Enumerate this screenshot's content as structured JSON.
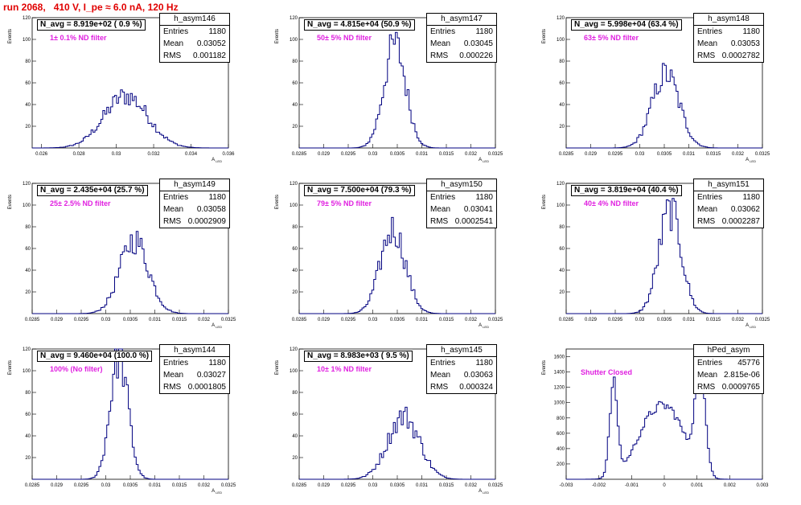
{
  "header": "run 2068,   410 V, I_pe ≈ 6.0 nA, 120 Hz",
  "chart_data": [
    {
      "type": "bar",
      "name": "h_asym146",
      "n_avg": "N_avg = 8.919e+02 ( 0.9 %)",
      "filter": "1± 0.1% ND filter",
      "stats": [
        {
          "label": "Entries",
          "value": "1180"
        },
        {
          "label": "Mean",
          "value": "0.03052"
        },
        {
          "label": "RMS",
          "value": "0.001182"
        }
      ],
      "xlabel": "A_LED",
      "ylabel": "Events",
      "xlim": [
        0.0255,
        0.036
      ],
      "ylim": [
        0,
        120
      ],
      "xticks": [
        "0.026",
        "0.028",
        "0.03",
        "0.032",
        "0.034",
        "0.036"
      ],
      "yticks": [
        "20",
        "40",
        "60",
        "80",
        "100",
        "120"
      ],
      "mean": 0.03052,
      "sigma": 0.00118,
      "peak": 48
    },
    {
      "type": "bar",
      "name": "h_asym147",
      "n_avg": "N_avg = 4.815e+04 (50.9 %)",
      "filter": "50± 5% ND filter",
      "stats": [
        {
          "label": "Entries",
          "value": "1180"
        },
        {
          "label": "Mean",
          "value": "0.03045"
        },
        {
          "label": "RMS",
          "value": "0.000226"
        }
      ],
      "xlabel": "A_LED",
      "ylabel": "Events",
      "xlim": [
        0.0285,
        0.0325
      ],
      "ylim": [
        0,
        120
      ],
      "xticks": [
        "0.0285",
        "0.029",
        "0.0295",
        "0.03",
        "0.0305",
        "0.031",
        "0.0315",
        "0.032",
        "0.0325"
      ],
      "yticks": [
        "20",
        "40",
        "60",
        "80",
        "100",
        "120"
      ],
      "mean": 0.03045,
      "sigma": 0.000226,
      "peak": 95
    },
    {
      "type": "bar",
      "name": "h_asym148",
      "n_avg": "N_avg = 5.998e+04 (63.4 %)",
      "filter": "63± 5% ND filter",
      "stats": [
        {
          "label": "Entries",
          "value": "1180"
        },
        {
          "label": "Mean",
          "value": "0.03053"
        },
        {
          "label": "RMS",
          "value": "0.0002782"
        }
      ],
      "xlabel": "A_LED",
      "ylabel": "Events",
      "xlim": [
        0.0285,
        0.0325
      ],
      "ylim": [
        0,
        120
      ],
      "xticks": [
        "0.0285",
        "0.029",
        "0.0295",
        "0.03",
        "0.0305",
        "0.031",
        "0.0315",
        "0.032",
        "0.0325"
      ],
      "yticks": [
        "20",
        "40",
        "60",
        "80",
        "100",
        "120"
      ],
      "mean": 0.03053,
      "sigma": 0.000278,
      "peak": 68
    },
    {
      "type": "bar",
      "name": "h_asym149",
      "n_avg": "N_avg = 2.435e+04 (25.7 %)",
      "filter": "25± 2.5% ND filter",
      "stats": [
        {
          "label": "Entries",
          "value": "1180"
        },
        {
          "label": "Mean",
          "value": "0.03058"
        },
        {
          "label": "RMS",
          "value": "0.0002909"
        }
      ],
      "xlabel": "A_LED",
      "ylabel": "Events",
      "xlim": [
        0.0285,
        0.0325
      ],
      "ylim": [
        0,
        120
      ],
      "xticks": [
        "0.0285",
        "0.029",
        "0.0295",
        "0.03",
        "0.0305",
        "0.031",
        "0.0315",
        "0.032",
        "0.0325"
      ],
      "yticks": [
        "20",
        "40",
        "60",
        "80",
        "100",
        "120"
      ],
      "mean": 0.03058,
      "sigma": 0.000291,
      "peak": 68
    },
    {
      "type": "bar",
      "name": "h_asym150",
      "n_avg": "N_avg = 7.500e+04 (79.3 %)",
      "filter": "79± 5% ND filter",
      "stats": [
        {
          "label": "Entries",
          "value": "1180"
        },
        {
          "label": "Mean",
          "value": "0.03041"
        },
        {
          "label": "RMS",
          "value": "0.0002541"
        }
      ],
      "xlabel": "A_LED",
      "ylabel": "Events",
      "xlim": [
        0.0285,
        0.0325
      ],
      "ylim": [
        0,
        120
      ],
      "xticks": [
        "0.0285",
        "0.029",
        "0.0295",
        "0.03",
        "0.0305",
        "0.031",
        "0.0315",
        "0.032",
        "0.0325"
      ],
      "yticks": [
        "20",
        "40",
        "60",
        "80",
        "100",
        "120"
      ],
      "mean": 0.03041,
      "sigma": 0.000254,
      "peak": 78
    },
    {
      "type": "bar",
      "name": "h_asym151",
      "n_avg": "N_avg = 3.819e+04 (40.4 %)",
      "filter": "40± 4% ND filter",
      "stats": [
        {
          "label": "Entries",
          "value": "1180"
        },
        {
          "label": "Mean",
          "value": "0.03062"
        },
        {
          "label": "RMS",
          "value": "0.0002287"
        }
      ],
      "xlabel": "A_LED",
      "ylabel": "Events",
      "xlim": [
        0.0285,
        0.0325
      ],
      "ylim": [
        0,
        120
      ],
      "xticks": [
        "0.0285",
        "0.029",
        "0.0295",
        "0.03",
        "0.0305",
        "0.031",
        "0.0315",
        "0.032",
        "0.0325"
      ],
      "yticks": [
        "20",
        "40",
        "60",
        "80",
        "100",
        "120"
      ],
      "mean": 0.03062,
      "sigma": 0.000229,
      "peak": 95
    },
    {
      "type": "bar",
      "name": "h_asym144",
      "n_avg": "N_avg = 9.460e+04 (100.0 %)",
      "filter": "100% (No filter)",
      "stats": [
        {
          "label": "Entries",
          "value": "1180"
        },
        {
          "label": "Mean",
          "value": "0.03027"
        },
        {
          "label": "RMS",
          "value": "0.0001805"
        }
      ],
      "xlabel": "A_LED",
      "ylabel": "Events",
      "xlim": [
        0.0285,
        0.0325
      ],
      "ylim": [
        0,
        120
      ],
      "xticks": [
        "0.0285",
        "0.029",
        "0.0295",
        "0.03",
        "0.0305",
        "0.031",
        "0.0315",
        "0.032",
        "0.0325"
      ],
      "yticks": [
        "20",
        "40",
        "60",
        "80",
        "100",
        "120"
      ],
      "mean": 0.03027,
      "sigma": 0.000181,
      "peak": 115
    },
    {
      "type": "bar",
      "name": "h_asym145",
      "n_avg": "N_avg = 8.983e+03 ( 9.5 %)",
      "filter": "10± 1% ND filter",
      "stats": [
        {
          "label": "Entries",
          "value": "1180"
        },
        {
          "label": "Mean",
          "value": "0.03063"
        },
        {
          "label": "RMS",
          "value": "0.000324"
        }
      ],
      "xlabel": "A_LED",
      "ylabel": "Events",
      "xlim": [
        0.0285,
        0.0325
      ],
      "ylim": [
        0,
        120
      ],
      "xticks": [
        "0.0285",
        "0.029",
        "0.0295",
        "0.03",
        "0.0305",
        "0.031",
        "0.0315",
        "0.032",
        "0.0325"
      ],
      "yticks": [
        "20",
        "40",
        "60",
        "80",
        "100",
        "120"
      ],
      "mean": 0.03063,
      "sigma": 0.000324,
      "peak": 58
    },
    {
      "type": "bar",
      "name": "hPed_asym",
      "n_avg": "",
      "filter": "Shutter Closed",
      "stats": [
        {
          "label": "Entries",
          "value": "45776"
        },
        {
          "label": "Mean",
          "value": "2.815e-06"
        },
        {
          "label": "RMS",
          "value": "0.0009765"
        }
      ],
      "xlabel": "",
      "ylabel": "Events",
      "xlim": [
        -0.003,
        0.003
      ],
      "ylim": [
        0,
        1700
      ],
      "xticks": [
        "-0.003",
        "-0.002",
        "-0.001",
        "0",
        "0.001",
        "0.002",
        "0.003"
      ],
      "yticks": [
        "200",
        "400",
        "600",
        "800",
        "1000",
        "1200",
        "1400",
        "1600"
      ],
      "ped": true
    }
  ],
  "colors": {
    "line": "#000080",
    "label": "#e020e0",
    "header": "#e00000"
  }
}
